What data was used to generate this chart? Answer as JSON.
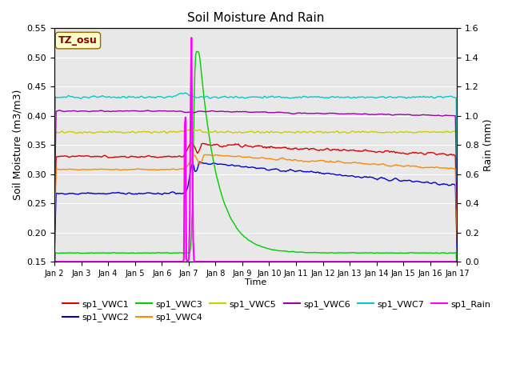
{
  "title": "Soil Moisture And Rain",
  "ylabel_left": "Soil Moisture (m3/m3)",
  "ylabel_right": "Rain (mm)",
  "xlabel": "Time",
  "xlim_days": [
    1,
    16
  ],
  "ylim_left": [
    0.15,
    0.55
  ],
  "ylim_right": [
    0.0,
    1.6
  ],
  "tz_label": "TZ_osu",
  "tz_bg": "#ffffcc",
  "tz_fg": "#880000",
  "background_color": "#e8e8e8",
  "x_ticks_pos": [
    1,
    2,
    3,
    4,
    5,
    6,
    7,
    8,
    9,
    10,
    11,
    12,
    13,
    14,
    15,
    16
  ],
  "x_ticks_labels": [
    "Jan 2",
    "Jan 3",
    "Jan 4",
    "Jan 5",
    "Jan 6",
    "Jan 7",
    "Jan 8",
    "Jan 9",
    "Jan 10",
    "Jan 11",
    "Jan 12",
    "Jan 13",
    "Jan 14",
    "Jan 15",
    "Jan 16",
    "Jan 17"
  ],
  "yticks_left": [
    0.15,
    0.2,
    0.25,
    0.3,
    0.35,
    0.4,
    0.45,
    0.5,
    0.55
  ],
  "yticks_right": [
    0.0,
    0.2,
    0.4,
    0.6,
    0.8,
    1.0,
    1.2,
    1.4,
    1.6
  ],
  "series": {
    "sp1_VWC1": {
      "color": "#dd0000",
      "lw": 1.0
    },
    "sp1_VWC2": {
      "color": "#0000cc",
      "lw": 1.0
    },
    "sp1_VWC3": {
      "color": "#00cc00",
      "lw": 1.0
    },
    "sp1_VWC4": {
      "color": "#ff8800",
      "lw": 1.0
    },
    "sp1_VWC5": {
      "color": "#cccc00",
      "lw": 1.0
    },
    "sp1_VWC6": {
      "color": "#9900aa",
      "lw": 1.0
    },
    "sp1_VWC7": {
      "color": "#00cccc",
      "lw": 1.0
    },
    "sp1_Rain": {
      "color": "#ff00ff",
      "lw": 1.5
    }
  },
  "legend_row1": [
    "sp1_VWC1",
    "sp1_VWC2",
    "sp1_VWC3",
    "sp1_VWC4",
    "sp1_VWC5",
    "sp1_VWC6"
  ],
  "legend_row2": [
    "sp1_VWC7",
    "sp1_Rain"
  ]
}
